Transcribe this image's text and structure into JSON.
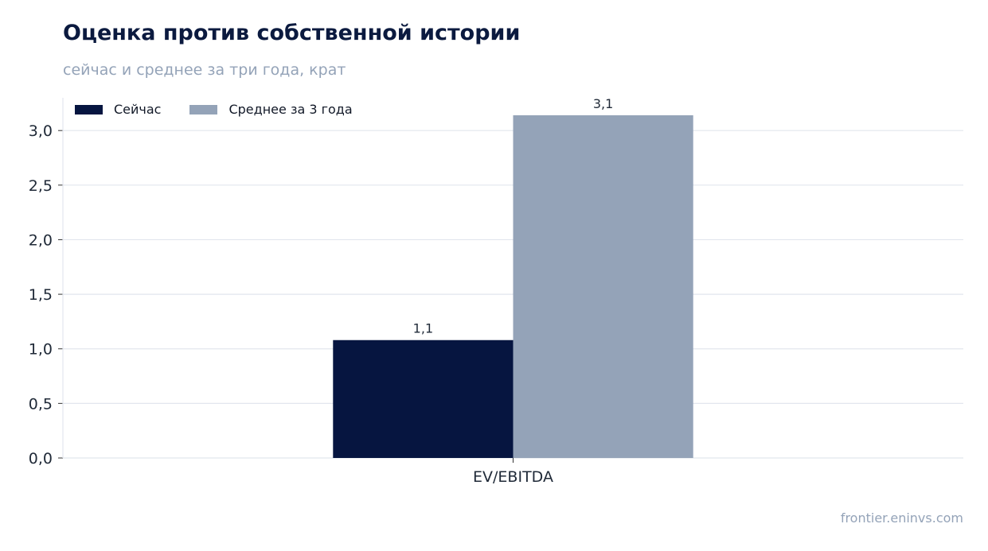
{
  "header": {
    "title": "Оценка против собственной истории",
    "subtitle": "сейчас и среднее за три года, крат"
  },
  "footer": {
    "source": "frontier.eninvs.com"
  },
  "chart_data": {
    "type": "bar",
    "categories": [
      "EV/EBITDA"
    ],
    "series": [
      {
        "name": "Сейчас",
        "values": [
          1.08
        ],
        "label": "1,1",
        "color": "#061540"
      },
      {
        "name": "Среднее за 3 года",
        "values": [
          3.14
        ],
        "label": "3,1",
        "color": "#94a3b8"
      }
    ],
    "ylim": [
      0,
      3.3
    ],
    "yticks": [
      0,
      0.5,
      1.0,
      1.5,
      2.0,
      2.5,
      3.0
    ],
    "ytick_labels": [
      "0,0",
      "0,5",
      "1,0",
      "1,5",
      "2,0",
      "2,5",
      "3,0"
    ],
    "grid": true,
    "legend_position": "top-left"
  }
}
